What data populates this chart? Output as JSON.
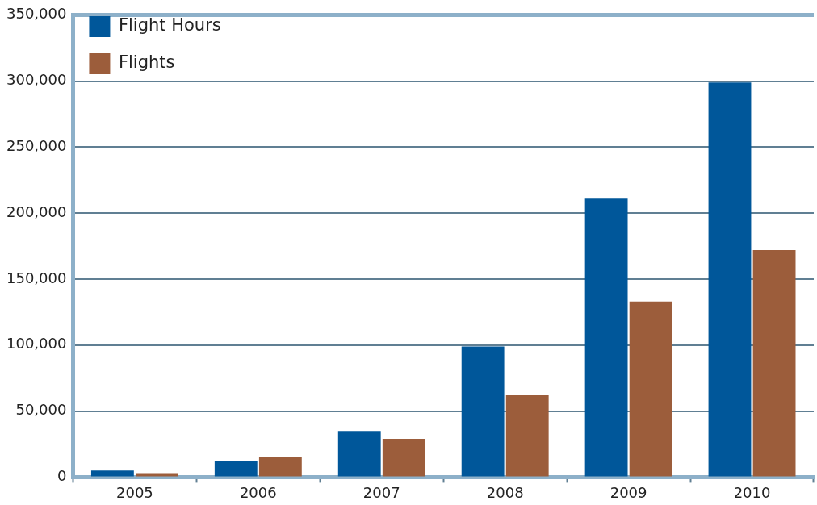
{
  "chart_data": {
    "type": "bar",
    "categories": [
      "2005",
      "2006",
      "2007",
      "2008",
      "2009",
      "2010"
    ],
    "series": [
      {
        "name": "Flight Hours",
        "color": "#00579a",
        "values": [
          5000,
          12000,
          35000,
          99000,
          211000,
          299000
        ]
      },
      {
        "name": "Flights",
        "color": "#9c5d3b",
        "values": [
          3000,
          15000,
          29000,
          62000,
          133000,
          172000
        ]
      }
    ],
    "ylim": [
      0,
      350000
    ],
    "yticks": [
      {
        "value": 0,
        "label": "0"
      },
      {
        "value": 50000,
        "label": "50,000"
      },
      {
        "value": 100000,
        "label": "100,000"
      },
      {
        "value": 150000,
        "label": "150,000"
      },
      {
        "value": 200000,
        "label": "200,000"
      },
      {
        "value": 250000,
        "label": "250,000"
      },
      {
        "value": 300000,
        "label": "300,000"
      },
      {
        "value": 350000,
        "label": "350,000"
      }
    ],
    "grid": "y",
    "legend": "top left"
  }
}
